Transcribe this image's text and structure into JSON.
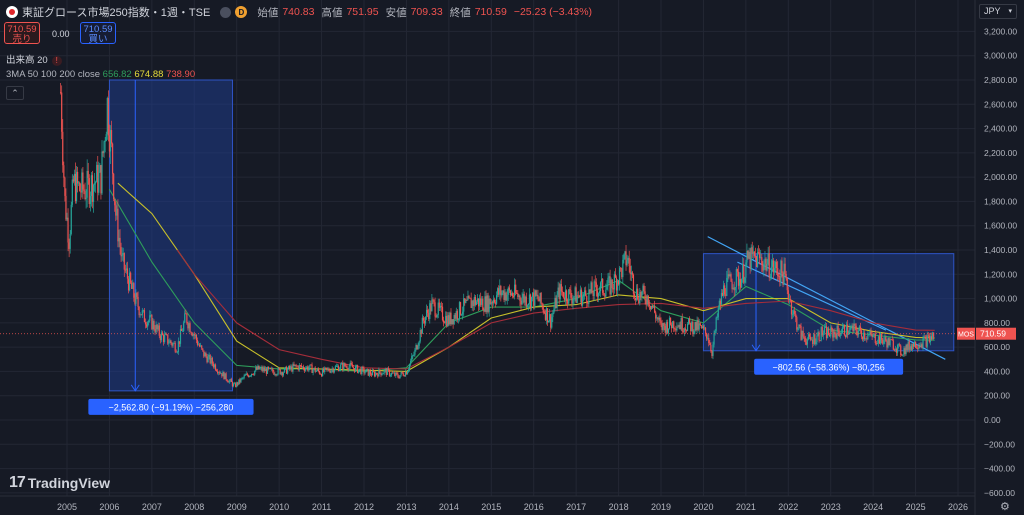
{
  "header": {
    "symbol_title": "東証グロース市場250指数・1週・TSE",
    "badge_letter": "D",
    "open_label": "始値",
    "open_value": "740.83",
    "high_label": "高値",
    "high_value": "751.95",
    "low_label": "安値",
    "low_value": "709.33",
    "close_label": "終値",
    "close_value": "710.59",
    "change": "−25.23 (−3.43%)"
  },
  "trade": {
    "sell_price": "710.59",
    "sell_label": "売り",
    "spread": "0.00",
    "buy_price": "710.59",
    "buy_label": "買い"
  },
  "indicators": {
    "volume_label": "出来高 20",
    "volume_error": "!",
    "ma_label": "3MA 50 100 200 close",
    "ma_values": [
      "656.82",
      "674.88",
      "738.90"
    ]
  },
  "collapse_icon": "chevron-up-icon",
  "currency": "JPY",
  "logo": {
    "mark": "17",
    "text": "TradingView"
  },
  "price_label": {
    "symbol": "MOS",
    "value": "710.59"
  },
  "colors": {
    "background": "#161a25",
    "price_line": "#ef5350",
    "candle_up": "#26a69a",
    "candle_down": "#ef5350",
    "ma50": "#2e9e5b",
    "ma100": "#c8c02a",
    "ma200": "#a52d3a",
    "measure_fill": "#1f3d8a",
    "measure_line": "#2962ff",
    "trendline": "#42a5f5"
  },
  "chart_data": {
    "type": "line",
    "title": "東証グロース市場250指数・1週・TSE",
    "xlabel": "",
    "ylabel": "",
    "x_ticks": [
      "2005",
      "2006",
      "2007",
      "2008",
      "2009",
      "2010",
      "2011",
      "2012",
      "2013",
      "2014",
      "2015",
      "2016",
      "2017",
      "2018",
      "2019",
      "2020",
      "2021",
      "2022",
      "2023",
      "2024",
      "2025",
      "2026"
    ],
    "y_ticks": [
      "3,200.00",
      "3,000.00",
      "2,800.00",
      "2,600.00",
      "2,400.00",
      "2,200.00",
      "2,000.00",
      "1,800.00",
      "1,600.00",
      "1,400.00",
      "1,200.00",
      "1,000.00",
      "800.00",
      "600.00",
      "400.00",
      "200.00",
      "0.00",
      "−200.00",
      "−400.00",
      "−600.00"
    ],
    "ylim": [
      -600,
      3300
    ],
    "last_price": 710.59,
    "series": [
      {
        "name": "close",
        "x": [
          2004.85,
          2004.95,
          2005.05,
          2005.15,
          2005.3,
          2005.45,
          2005.6,
          2005.8,
          2005.95,
          2006.05,
          2006.15,
          2006.3,
          2006.45,
          2006.6,
          2006.8,
          2007.0,
          2007.2,
          2007.4,
          2007.6,
          2007.8,
          2008.0,
          2008.2,
          2008.4,
          2008.6,
          2008.8,
          2008.95,
          2009.2,
          2009.5,
          2009.8,
          2010.1,
          2010.4,
          2010.7,
          2011.0,
          2011.3,
          2011.6,
          2011.9,
          2012.2,
          2012.5,
          2012.8,
          2013.0,
          2013.2,
          2013.4,
          2013.6,
          2013.8,
          2014.0,
          2014.3,
          2014.6,
          2014.9,
          2015.2,
          2015.5,
          2015.8,
          2016.1,
          2016.4,
          2016.6,
          2016.9,
          2017.2,
          2017.5,
          2017.8,
          2018.0,
          2018.2,
          2018.4,
          2018.7,
          2019.0,
          2019.3,
          2019.6,
          2019.9,
          2020.1,
          2020.2,
          2020.35,
          2020.5,
          2020.7,
          2020.9,
          2021.05,
          2021.3,
          2021.6,
          2021.9,
          2022.1,
          2022.3,
          2022.5,
          2022.8,
          2023.0,
          2023.3,
          2023.6,
          2023.9,
          2024.2,
          2024.5,
          2024.65,
          2024.9,
          2025.1,
          2025.3,
          2025.45
        ],
        "values": [
          2700,
          1800,
          1500,
          1950,
          1900,
          1900,
          1950,
          2000,
          2600,
          2200,
          1700,
          1300,
          1150,
          1000,
          850,
          800,
          700,
          650,
          600,
          850,
          700,
          550,
          480,
          400,
          330,
          280,
          360,
          420,
          400,
          400,
          440,
          430,
          390,
          430,
          450,
          410,
          380,
          400,
          360,
          400,
          560,
          820,
          950,
          880,
          820,
          920,
          980,
          960,
          1050,
          1040,
          1000,
          1000,
          820,
          1060,
          1020,
          1020,
          1080,
          1100,
          1180,
          1340,
          1050,
          1010,
          760,
          800,
          780,
          760,
          700,
          560,
          900,
          1100,
          1150,
          1180,
          1320,
          1330,
          1260,
          1200,
          900,
          700,
          650,
          720,
          710,
          740,
          740,
          690,
          660,
          620,
          560,
          620,
          640,
          660,
          710.59
        ]
      },
      {
        "name": "",
        "x": [
          2006.0,
          2007.0,
          2008.0,
          2009.0,
          2010.0,
          2011.0,
          2012.0,
          2013.0,
          2014.0,
          2015.0,
          2016.0,
          2017.0,
          2018.0,
          2019.0,
          2020.0,
          2021.0,
          2022.0,
          2023.0,
          2024.0,
          2025.0,
          2025.45
        ],
        "values": [
          1900,
          1300,
          800,
          450,
          420,
          420,
          400,
          430,
          800,
          930,
          930,
          1000,
          1150,
          900,
          800,
          1100,
          950,
          740,
          700,
          660,
          656.82
        ]
      },
      {
        "name": "",
        "x": [
          2006.2,
          2007.0,
          2008.0,
          2009.0,
          2010.0,
          2011.0,
          2012.0,
          2013.0,
          2014.0,
          2015.0,
          2016.0,
          2017.0,
          2018.0,
          2019.0,
          2020.0,
          2021.0,
          2022.0,
          2023.0,
          2024.0,
          2025.0,
          2025.45
        ],
        "values": [
          1950,
          1700,
          1200,
          650,
          430,
          420,
          410,
          400,
          600,
          840,
          930,
          950,
          1030,
          1000,
          900,
          1000,
          1000,
          800,
          730,
          680,
          674.88
        ]
      },
      {
        "name": "",
        "x": [
          2007.6,
          2008.0,
          2009.0,
          2010.0,
          2011.0,
          2012.0,
          2013.0,
          2014.0,
          2015.0,
          2016.0,
          2017.0,
          2018.0,
          2019.0,
          2020.0,
          2021.0,
          2022.0,
          2023.0,
          2024.0,
          2025.0,
          2025.45
        ],
        "values": [
          1400,
          1200,
          800,
          580,
          500,
          430,
          420,
          600,
          800,
          880,
          920,
          950,
          960,
          920,
          960,
          980,
          900,
          800,
          740,
          738.9
        ]
      }
    ],
    "annotations": [
      {
        "type": "measure",
        "x": [
          2006.0,
          2008.9
        ],
        "y": [
          2800,
          240
        ],
        "label": "−2,562.80 (−91.19%) −256,280"
      },
      {
        "type": "measure",
        "x": [
          2020.0,
          2025.9
        ],
        "y": [
          1370,
          570
        ],
        "label": "−802.56 (−58.36%) −80,256"
      },
      {
        "type": "trendline",
        "x": [
          2020.1,
          2025.7
        ],
        "y": [
          1510,
          500
        ]
      },
      {
        "type": "trendline",
        "x": [
          2020.8,
          2024.3
        ],
        "y": [
          1300,
          740
        ]
      }
    ]
  }
}
